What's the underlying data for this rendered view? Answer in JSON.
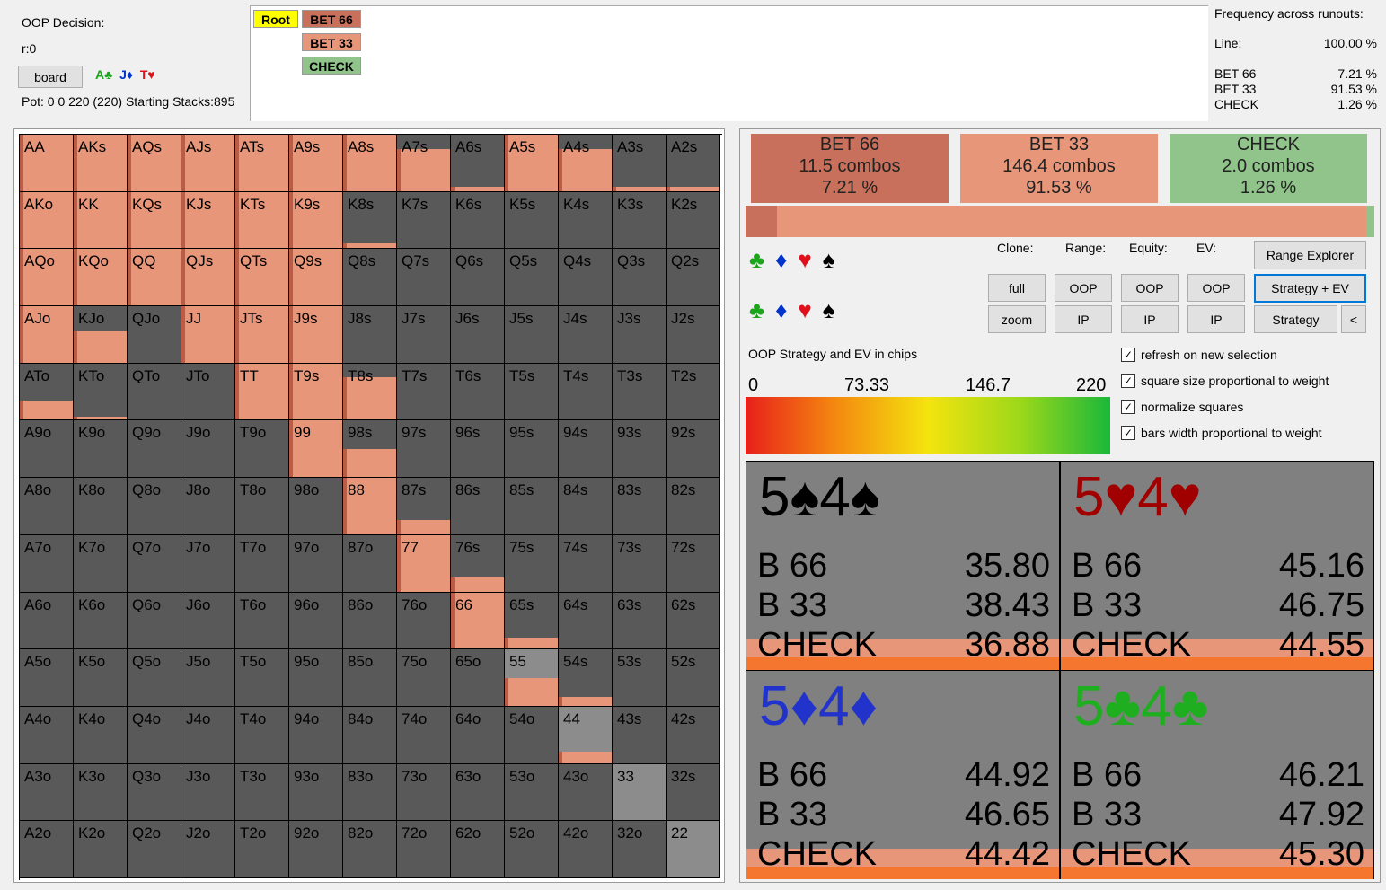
{
  "header": {
    "decision_label": "OOP Decision:",
    "round_label": "r:0",
    "board_button": "board",
    "board_cards": [
      {
        "rank": "A",
        "suit": "♣",
        "color": "green"
      },
      {
        "rank": "J",
        "suit": "♦",
        "color": "blue"
      },
      {
        "rank": "T",
        "suit": "♥",
        "color": "red"
      }
    ],
    "pot_text": "Pot: 0 0 220 (220) Starting Stacks:895"
  },
  "tree": {
    "root": "Root",
    "nodes": [
      "BET 66",
      "BET 33",
      "CHECK"
    ]
  },
  "frequency": {
    "title": "Frequency across runouts:",
    "line_label": "Line:",
    "line_value": "100.00 %",
    "rows": [
      {
        "label": "BET 66",
        "value": "7.21 %"
      },
      {
        "label": "BET 33",
        "value": "91.53 %"
      },
      {
        "label": "CHECK",
        "value": "1.26 %"
      }
    ]
  },
  "grid": {
    "hands": [
      [
        "AA",
        "AKs",
        "AQs",
        "AJs",
        "ATs",
        "A9s",
        "A8s",
        "A7s",
        "A6s",
        "A5s",
        "A4s",
        "A3s",
        "A2s"
      ],
      [
        "AKo",
        "KK",
        "KQs",
        "KJs",
        "KTs",
        "K9s",
        "K8s",
        "K7s",
        "K6s",
        "K5s",
        "K4s",
        "K3s",
        "K2s"
      ],
      [
        "AQo",
        "KQo",
        "QQ",
        "QJs",
        "QTs",
        "Q9s",
        "Q8s",
        "Q7s",
        "Q6s",
        "Q5s",
        "Q4s",
        "Q3s",
        "Q2s"
      ],
      [
        "AJo",
        "KJo",
        "QJo",
        "JJ",
        "JTs",
        "J9s",
        "J8s",
        "J7s",
        "J6s",
        "J5s",
        "J4s",
        "J3s",
        "J2s"
      ],
      [
        "ATo",
        "KTo",
        "QTo",
        "JTo",
        "TT",
        "T9s",
        "T8s",
        "T7s",
        "T6s",
        "T5s",
        "T4s",
        "T3s",
        "T2s"
      ],
      [
        "A9o",
        "K9o",
        "Q9o",
        "J9o",
        "T9o",
        "99",
        "98s",
        "97s",
        "96s",
        "95s",
        "94s",
        "93s",
        "92s"
      ],
      [
        "A8o",
        "K8o",
        "Q8o",
        "J8o",
        "T8o",
        "98o",
        "88",
        "87s",
        "86s",
        "85s",
        "84s",
        "83s",
        "82s"
      ],
      [
        "A7o",
        "K7o",
        "Q7o",
        "J7o",
        "T7o",
        "97o",
        "87o",
        "77",
        "76s",
        "75s",
        "74s",
        "73s",
        "72s"
      ],
      [
        "A6o",
        "K6o",
        "Q6o",
        "J6o",
        "T6o",
        "96o",
        "86o",
        "76o",
        "66",
        "65s",
        "64s",
        "63s",
        "62s"
      ],
      [
        "A5o",
        "K5o",
        "Q5o",
        "J5o",
        "T5o",
        "95o",
        "85o",
        "75o",
        "65o",
        "55",
        "54s",
        "53s",
        "52s"
      ],
      [
        "A4o",
        "K4o",
        "Q4o",
        "J4o",
        "T4o",
        "94o",
        "84o",
        "74o",
        "64o",
        "54o",
        "44",
        "43s",
        "42s"
      ],
      [
        "A3o",
        "K3o",
        "Q3o",
        "J3o",
        "T3o",
        "93o",
        "83o",
        "73o",
        "63o",
        "53o",
        "43o",
        "33",
        "32s"
      ],
      [
        "A2o",
        "K2o",
        "Q2o",
        "J2o",
        "T2o",
        "92o",
        "82o",
        "72o",
        "62o",
        "52o",
        "42o",
        "32o",
        "22"
      ]
    ],
    "fill_weights": [
      [
        1,
        1,
        1,
        1,
        1,
        1,
        1,
        0.75,
        0.08,
        1,
        0.75,
        0.08,
        0.08
      ],
      [
        1,
        1,
        1,
        1,
        1,
        1,
        0.08,
        0,
        0,
        0,
        0,
        0,
        0
      ],
      [
        1,
        1,
        1,
        1,
        1,
        1,
        0,
        0,
        0,
        0,
        0,
        0,
        0
      ],
      [
        1,
        0.55,
        0,
        1,
        1,
        1,
        0,
        0,
        0,
        0,
        0,
        0,
        0
      ],
      [
        0.35,
        0.06,
        0,
        0,
        1,
        1,
        0.75,
        0,
        0,
        0,
        0,
        0,
        0
      ],
      [
        0,
        0,
        0,
        0,
        0,
        1,
        0.5,
        0,
        0,
        0,
        0,
        0,
        0
      ],
      [
        0,
        0,
        0,
        0,
        0,
        0,
        1,
        0.25,
        0,
        0,
        0,
        0,
        0
      ],
      [
        0,
        0,
        0,
        0,
        0,
        0,
        0,
        1,
        0.25,
        0,
        0,
        0,
        0
      ],
      [
        0,
        0,
        0,
        0,
        0,
        0,
        0,
        0,
        1,
        0.2,
        0,
        0,
        0
      ],
      [
        0,
        0,
        0,
        0,
        0,
        0,
        0,
        0,
        0,
        0.5,
        0.15,
        0,
        0
      ],
      [
        0,
        0,
        0,
        0,
        0,
        0,
        0,
        0,
        0,
        0,
        0.2,
        0,
        0
      ],
      [
        0,
        0,
        0,
        0,
        0,
        0,
        0,
        0,
        0,
        0,
        0,
        0,
        0
      ],
      [
        0,
        0,
        0,
        0,
        0,
        0,
        0,
        0,
        0,
        0,
        0,
        0,
        0
      ]
    ],
    "light_cells": [
      "55",
      "44",
      "33",
      "22"
    ]
  },
  "actions": [
    {
      "name": "BET 66",
      "combos": "11.5 combos",
      "pct": "7.21 %",
      "color": "#c8705b"
    },
    {
      "name": "BET 33",
      "combos": "146.4 combos",
      "pct": "91.53 %",
      "color": "#e8967a"
    },
    {
      "name": "CHECK",
      "combos": "2.0 combos",
      "pct": "1.26 %",
      "color": "#90c48a"
    }
  ],
  "controls": {
    "clone_label": "Clone:",
    "range_label": "Range:",
    "equity_label": "Equity:",
    "ev_label": "EV:",
    "full": "full",
    "zoom": "zoom",
    "oop": "OOP",
    "ip": "IP",
    "range_explorer": "Range Explorer",
    "strategy_ev": "Strategy + EV",
    "strategy": "Strategy",
    "back": "<",
    "suits": [
      "♣",
      "♦",
      "♥",
      "♠"
    ],
    "strategy_title": "OOP Strategy and EV in chips",
    "scale": [
      "0",
      "73.33",
      "146.7",
      "220"
    ],
    "checkboxes": [
      "refresh on new selection",
      "square size proportional to weight",
      "normalize squares",
      "bars width proportional to weight"
    ]
  },
  "combos": [
    {
      "rank1": "5",
      "rank2": "4",
      "suit": "♠",
      "color": "#000000",
      "rows": [
        [
          "B 66",
          "35.80"
        ],
        [
          "B 33",
          "38.43"
        ],
        [
          "CHECK",
          "36.88"
        ]
      ]
    },
    {
      "rank1": "5",
      "rank2": "4",
      "suit": "♥",
      "color": "#a00000",
      "rows": [
        [
          "B 66",
          "45.16"
        ],
        [
          "B 33",
          "46.75"
        ],
        [
          "CHECK",
          "44.55"
        ]
      ]
    },
    {
      "rank1": "5",
      "rank2": "4",
      "suit": "♦",
      "color": "#2233cc",
      "rows": [
        [
          "B 66",
          "44.92"
        ],
        [
          "B 33",
          "46.65"
        ],
        [
          "CHECK",
          "44.42"
        ]
      ]
    },
    {
      "rank1": "5",
      "rank2": "4",
      "suit": "♣",
      "color": "#1fae1f",
      "rows": [
        [
          "B 66",
          "46.21"
        ],
        [
          "B 33",
          "47.92"
        ],
        [
          "CHECK",
          "45.30"
        ]
      ]
    }
  ]
}
